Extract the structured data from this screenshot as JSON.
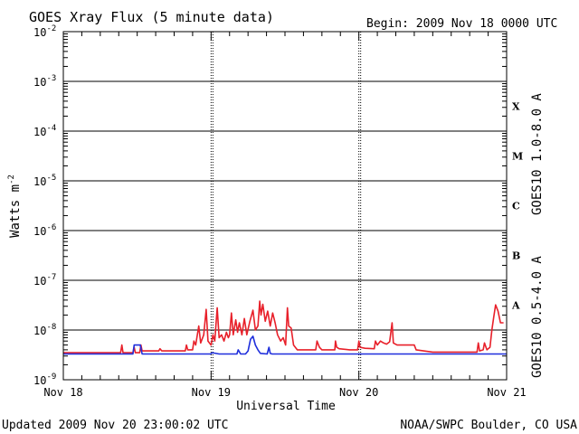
{
  "header": {
    "title": "GOES Xray Flux (5 minute data)",
    "begin": "Begin:  2009 Nov 18 0000 UTC"
  },
  "footer": {
    "updated": "Updated 2009 Nov 20 23:00:02 UTC",
    "credit": "NOAA/SWPC Boulder, CO USA"
  },
  "chart_data": {
    "type": "line",
    "title": "GOES Xray Flux (5 minute data)",
    "xlabel": "Universal Time",
    "ylabel": "Watts m",
    "ylabel_sup": "-2",
    "yscale": "log",
    "ylim": [
      1e-09,
      0.01
    ],
    "xlim_hours": [
      0,
      72
    ],
    "x_ticks": [
      {
        "h": 0,
        "label": "Nov 18"
      },
      {
        "h": 24,
        "label": "Nov 19"
      },
      {
        "h": 48,
        "label": "Nov 20"
      },
      {
        "h": 72,
        "label": "Nov 21"
      }
    ],
    "y_ticks": [
      {
        "exp": -2,
        "base": "10",
        "sup": "-2"
      },
      {
        "exp": -3,
        "base": "10",
        "sup": "-3"
      },
      {
        "exp": -4,
        "base": "10",
        "sup": "-4"
      },
      {
        "exp": -5,
        "base": "10",
        "sup": "-5"
      },
      {
        "exp": -6,
        "base": "10",
        "sup": "-6"
      },
      {
        "exp": -7,
        "base": "10",
        "sup": "-7"
      },
      {
        "exp": -8,
        "base": "10",
        "sup": "-8"
      },
      {
        "exp": -9,
        "base": "10",
        "sup": "-9"
      }
    ],
    "flare_classes": [
      {
        "label": "X",
        "exp": -4
      },
      {
        "label": "M",
        "exp": -5
      },
      {
        "label": "C",
        "exp": -6
      },
      {
        "label": "B",
        "exp": -7
      },
      {
        "label": "A",
        "exp": -8
      }
    ],
    "grid": true,
    "series": [
      {
        "name": "GOES10 1.0-8.0 A",
        "color": "#e8202a",
        "points": [
          [
            0,
            3.5e-09
          ],
          [
            9.3,
            3.5e-09
          ],
          [
            9.5,
            5e-09
          ],
          [
            9.7,
            3.5e-09
          ],
          [
            11.3,
            3.5e-09
          ],
          [
            11.5,
            4.5e-09
          ],
          [
            11.7,
            3.5e-09
          ],
          [
            12.4,
            3.5e-09
          ],
          [
            12.6,
            5e-09
          ],
          [
            12.8,
            3.8e-09
          ],
          [
            15.5,
            3.8e-09
          ],
          [
            15.7,
            4.2e-09
          ],
          [
            16,
            3.8e-09
          ],
          [
            19.8,
            3.8e-09
          ],
          [
            20,
            5e-09
          ],
          [
            20.2,
            4e-09
          ],
          [
            21,
            4e-09
          ],
          [
            21.2,
            6e-09
          ],
          [
            21.5,
            5e-09
          ],
          [
            22,
            1.2e-08
          ],
          [
            22.3,
            5.5e-09
          ],
          [
            22.8,
            8e-09
          ],
          [
            23.2,
            2.6e-08
          ],
          [
            23.5,
            6e-09
          ],
          [
            24,
            5e-09
          ],
          [
            24.3,
            8e-09
          ],
          [
            24.6,
            6e-09
          ],
          [
            25,
            2.8e-08
          ],
          [
            25.3,
            7e-09
          ],
          [
            25.7,
            8e-09
          ],
          [
            26.1,
            6e-09
          ],
          [
            26.5,
            9e-09
          ],
          [
            26.8,
            7e-09
          ],
          [
            27,
            8e-09
          ],
          [
            27.3,
            2.2e-08
          ],
          [
            27.6,
            8e-09
          ],
          [
            28,
            1.6e-08
          ],
          [
            28.3,
            9e-09
          ],
          [
            28.6,
            1.4e-08
          ],
          [
            29,
            8e-09
          ],
          [
            29.4,
            1.7e-08
          ],
          [
            29.8,
            8e-09
          ],
          [
            30.3,
            1.5e-08
          ],
          [
            30.8,
            2.5e-08
          ],
          [
            31.2,
            1e-08
          ],
          [
            31.6,
            1.2e-08
          ],
          [
            31.9,
            3.8e-08
          ],
          [
            32.1,
            2e-08
          ],
          [
            32.4,
            3.3e-08
          ],
          [
            32.8,
            1.5e-08
          ],
          [
            33.2,
            2.4e-08
          ],
          [
            33.6,
            1.2e-08
          ],
          [
            34,
            2.2e-08
          ],
          [
            34.4,
            1.4e-08
          ],
          [
            34.8,
            8e-09
          ],
          [
            35.3,
            6e-09
          ],
          [
            35.7,
            7e-09
          ],
          [
            36.1,
            5e-09
          ],
          [
            36.4,
            2.8e-08
          ],
          [
            36.6,
            1.2e-08
          ],
          [
            37,
            1.1e-08
          ],
          [
            37.4,
            5e-09
          ],
          [
            38,
            4e-09
          ],
          [
            41,
            4e-09
          ],
          [
            41.2,
            6e-09
          ],
          [
            41.6,
            4.5e-09
          ],
          [
            42,
            4e-09
          ],
          [
            44.1,
            4e-09
          ],
          [
            44.2,
            6e-09
          ],
          [
            44.4,
            4.5e-09
          ],
          [
            44.8,
            4.2e-09
          ],
          [
            46.5,
            4e-09
          ],
          [
            47.8,
            4e-09
          ],
          [
            48,
            6e-09
          ],
          [
            48.2,
            4.5e-09
          ],
          [
            49,
            4.3e-09
          ],
          [
            50.5,
            4.2e-09
          ],
          [
            50.7,
            6e-09
          ],
          [
            51,
            5e-09
          ],
          [
            51.5,
            6e-09
          ],
          [
            52,
            5.5e-09
          ],
          [
            52.5,
            5.2e-09
          ],
          [
            53,
            5.8e-09
          ],
          [
            53.4,
            1.4e-08
          ],
          [
            53.6,
            5.5e-09
          ],
          [
            54.2,
            5e-09
          ],
          [
            56,
            5e-09
          ],
          [
            57,
            5e-09
          ],
          [
            57.3,
            4e-09
          ],
          [
            60,
            3.6e-09
          ],
          [
            62,
            3.6e-09
          ],
          [
            65,
            3.6e-09
          ],
          [
            67.2,
            3.6e-09
          ],
          [
            67.4,
            5.5e-09
          ],
          [
            67.6,
            3.8e-09
          ],
          [
            68.2,
            4e-09
          ],
          [
            68.4,
            5.5e-09
          ],
          [
            68.8,
            4e-09
          ],
          [
            69.3,
            4.5e-09
          ],
          [
            69.6,
            1e-08
          ],
          [
            69.9,
            1.8e-08
          ],
          [
            70.2,
            3.2e-08
          ],
          [
            70.6,
            2.4e-08
          ],
          [
            71,
            1.4e-08
          ],
          [
            71.5,
            1.4e-08
          ]
        ]
      },
      {
        "name": "GOES10 0.5-4.0 A",
        "color": "#1f2fdc",
        "points": [
          [
            0,
            3.3e-09
          ],
          [
            11.3,
            3.3e-09
          ],
          [
            11.5,
            5e-09
          ],
          [
            12.5,
            5e-09
          ],
          [
            12.8,
            3.3e-09
          ],
          [
            23.9,
            3.3e-09
          ],
          [
            24.2,
            3.5e-09
          ],
          [
            25.3,
            3.3e-09
          ],
          [
            28.2,
            3.3e-09
          ],
          [
            28.4,
            4e-09
          ],
          [
            28.8,
            3.3e-09
          ],
          [
            29.6,
            3.3e-09
          ],
          [
            30,
            3.8e-09
          ],
          [
            30.4,
            6.5e-09
          ],
          [
            30.8,
            7.5e-09
          ],
          [
            31.2,
            5e-09
          ],
          [
            31.6,
            4e-09
          ],
          [
            32,
            3.4e-09
          ],
          [
            33.1,
            3.3e-09
          ],
          [
            33.4,
            4.5e-09
          ],
          [
            33.6,
            3.4e-09
          ],
          [
            33.9,
            3.3e-09
          ],
          [
            72,
            3.3e-09
          ]
        ]
      }
    ]
  }
}
